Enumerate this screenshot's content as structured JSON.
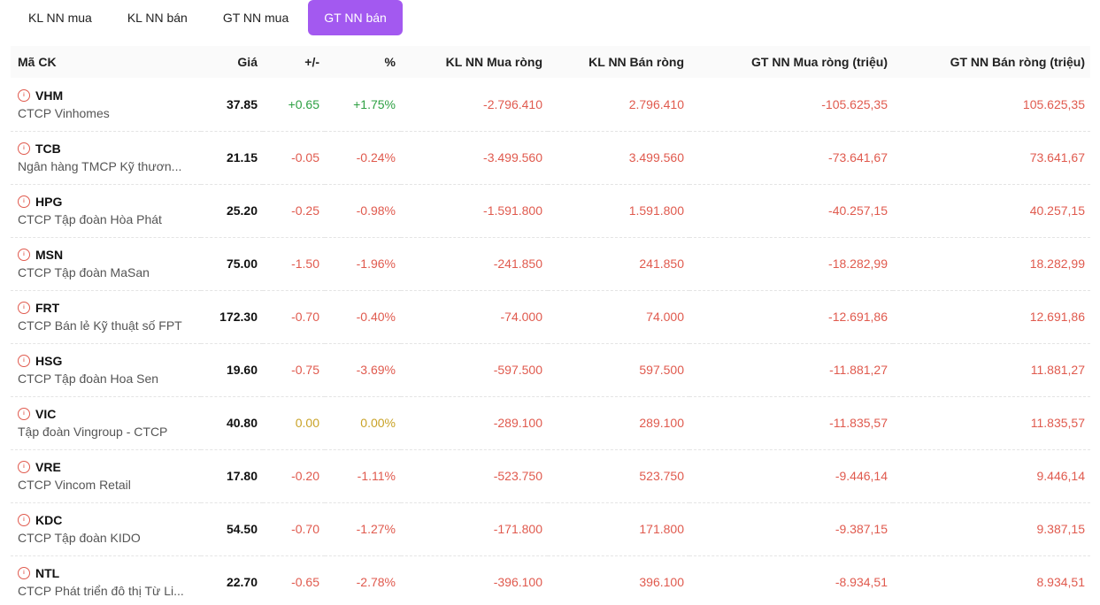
{
  "tabs": [
    {
      "label": "KL NN mua",
      "active": false
    },
    {
      "label": "KL NN bán",
      "active": false
    },
    {
      "label": "GT NN mua",
      "active": false
    },
    {
      "label": "GT NN bán",
      "active": true
    }
  ],
  "headers": {
    "code": "Mã CK",
    "price": "Giá",
    "change": "+/-",
    "percent": "%",
    "net_buy_vol": "KL NN Mua ròng",
    "net_sell_vol": "KL NN Bán ròng",
    "net_buy_val": "GT NN Mua ròng (triệu)",
    "net_sell_val": "GT NN Bán ròng (triệu)"
  },
  "colors": {
    "up": "#2ea043",
    "down": "#e05a4e",
    "ref": "#c9a227",
    "accent": "#a359f0"
  },
  "rows": [
    {
      "code": "VHM",
      "name": "CTCP Vinhomes",
      "price": "37.85",
      "change": "+0.65",
      "percent": "+1.75%",
      "trend": "up",
      "net_buy_vol": "-2.796.410",
      "net_sell_vol": "2.796.410",
      "net_buy_val": "-105.625,35",
      "net_sell_val": "105.625,35"
    },
    {
      "code": "TCB",
      "name": "Ngân hàng TMCP Kỹ thươn...",
      "price": "21.15",
      "change": "-0.05",
      "percent": "-0.24%",
      "trend": "down",
      "net_buy_vol": "-3.499.560",
      "net_sell_vol": "3.499.560",
      "net_buy_val": "-73.641,67",
      "net_sell_val": "73.641,67"
    },
    {
      "code": "HPG",
      "name": "CTCP Tập đoàn Hòa Phát",
      "price": "25.20",
      "change": "-0.25",
      "percent": "-0.98%",
      "trend": "down",
      "net_buy_vol": "-1.591.800",
      "net_sell_vol": "1.591.800",
      "net_buy_val": "-40.257,15",
      "net_sell_val": "40.257,15"
    },
    {
      "code": "MSN",
      "name": "CTCP Tập đoàn MaSan",
      "price": "75.00",
      "change": "-1.50",
      "percent": "-1.96%",
      "trend": "down",
      "net_buy_vol": "-241.850",
      "net_sell_vol": "241.850",
      "net_buy_val": "-18.282,99",
      "net_sell_val": "18.282,99"
    },
    {
      "code": "FRT",
      "name": "CTCP Bán lẻ Kỹ thuật số FPT",
      "price": "172.30",
      "change": "-0.70",
      "percent": "-0.40%",
      "trend": "down",
      "net_buy_vol": "-74.000",
      "net_sell_vol": "74.000",
      "net_buy_val": "-12.691,86",
      "net_sell_val": "12.691,86"
    },
    {
      "code": "HSG",
      "name": "CTCP Tập đoàn Hoa Sen",
      "price": "19.60",
      "change": "-0.75",
      "percent": "-3.69%",
      "trend": "down",
      "net_buy_vol": "-597.500",
      "net_sell_vol": "597.500",
      "net_buy_val": "-11.881,27",
      "net_sell_val": "11.881,27"
    },
    {
      "code": "VIC",
      "name": "Tập đoàn Vingroup - CTCP",
      "price": "40.80",
      "change": "0.00",
      "percent": "0.00%",
      "trend": "ref",
      "net_buy_vol": "-289.100",
      "net_sell_vol": "289.100",
      "net_buy_val": "-11.835,57",
      "net_sell_val": "11.835,57"
    },
    {
      "code": "VRE",
      "name": "CTCP Vincom Retail",
      "price": "17.80",
      "change": "-0.20",
      "percent": "-1.11%",
      "trend": "down",
      "net_buy_vol": "-523.750",
      "net_sell_vol": "523.750",
      "net_buy_val": "-9.446,14",
      "net_sell_val": "9.446,14"
    },
    {
      "code": "KDC",
      "name": "CTCP Tập đoàn KIDO",
      "price": "54.50",
      "change": "-0.70",
      "percent": "-1.27%",
      "trend": "down",
      "net_buy_vol": "-171.800",
      "net_sell_vol": "171.800",
      "net_buy_val": "-9.387,15",
      "net_sell_val": "9.387,15"
    },
    {
      "code": "NTL",
      "name": "CTCP Phát triển đô thị Từ Li...",
      "price": "22.70",
      "change": "-0.65",
      "percent": "-2.78%",
      "trend": "down",
      "net_buy_vol": "-396.100",
      "net_sell_vol": "396.100",
      "net_buy_val": "-8.934,51",
      "net_sell_val": "8.934,51"
    }
  ]
}
